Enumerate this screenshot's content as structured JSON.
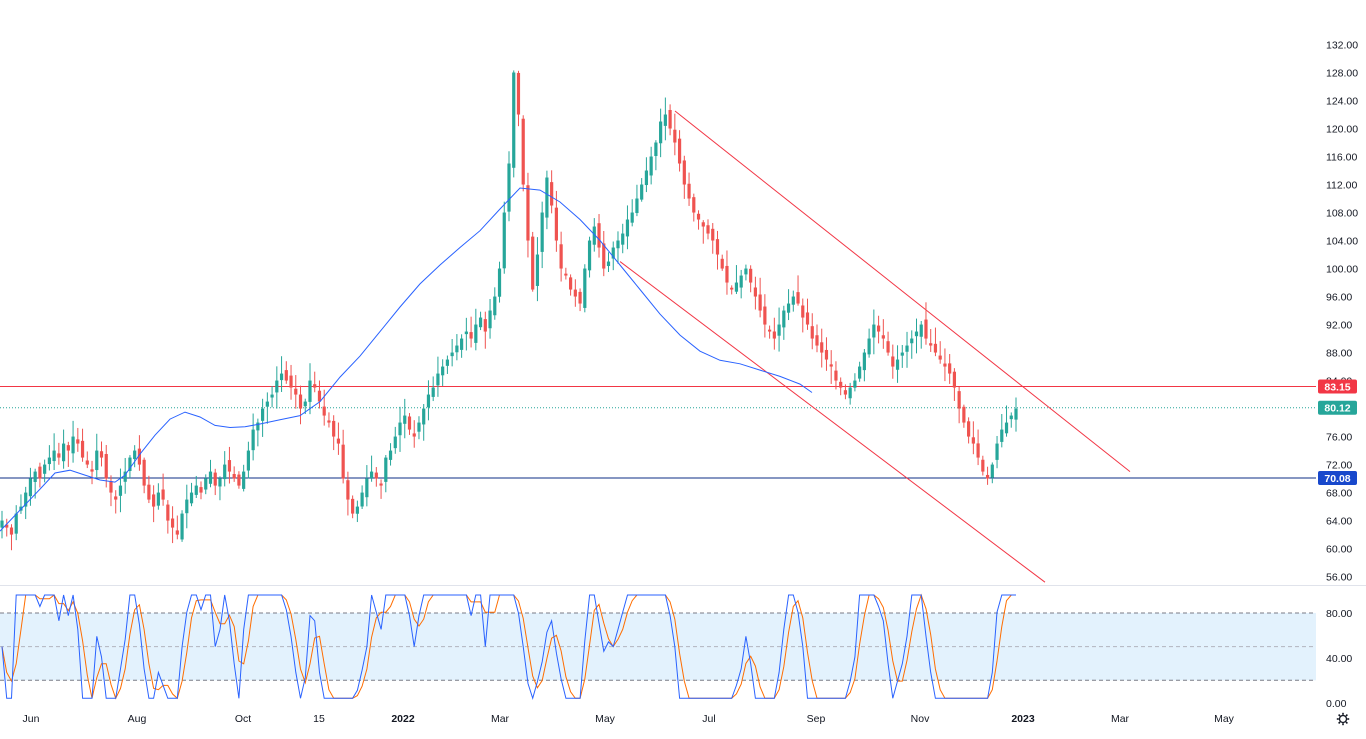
{
  "colors": {
    "up": "#26a69a",
    "down": "#ef5350",
    "ma": "#2962ff",
    "channel": "#f23645",
    "resistance": "#f23645",
    "support": "#0c2e86",
    "current": "#26a69a",
    "stoch_k": "#2962ff",
    "stoch_d": "#ff6d00",
    "stoch_band": "#e3f2fd",
    "grid_text": "#131722"
  },
  "icons": {
    "settings": "gear-icon"
  },
  "chart_data": [
    {
      "type": "candlestick",
      "title": "",
      "ylim": [
        54.8,
        133.5
      ],
      "y_ticks": [
        "132.00",
        "128.00",
        "124.00",
        "120.00",
        "116.00",
        "112.00",
        "108.00",
        "104.00",
        "100.00",
        "96.00",
        "92.00",
        "88.00",
        "84.00",
        "80.00",
        "76.00",
        "72.00",
        "68.00",
        "64.00",
        "60.00",
        "56.00"
      ],
      "x_ticks": [
        "Jun",
        "Aug",
        "Oct",
        "15",
        "2022",
        "Mar",
        "May",
        "Jul",
        "Sep",
        "Nov",
        "2023",
        "Mar",
        "May"
      ],
      "price_labels": [
        {
          "name": "resistance",
          "value": 83.15,
          "text": "83.15"
        },
        {
          "name": "current",
          "value": 80.12,
          "text": "80.12"
        },
        {
          "name": "support",
          "value": 70.08,
          "text": "70.08"
        }
      ],
      "close_series": [
        64,
        63,
        62,
        65,
        66,
        68,
        70,
        71,
        70,
        72,
        73,
        74,
        73,
        75,
        74,
        76,
        75,
        73,
        72,
        71,
        74,
        73,
        70,
        68,
        67,
        69,
        71,
        73,
        74,
        72,
        69,
        67,
        66,
        68,
        67,
        64,
        63,
        62,
        65,
        67,
        68,
        69,
        68,
        70,
        71,
        69,
        70,
        72,
        71,
        70,
        69,
        71,
        74,
        77,
        78,
        80,
        81,
        82,
        84,
        85,
        84,
        83,
        82,
        80,
        81,
        84,
        83,
        81,
        79,
        78,
        76,
        75,
        70,
        67,
        65,
        66,
        68,
        70,
        71,
        70,
        69,
        73,
        74,
        76,
        78,
        79,
        77,
        76,
        78,
        80,
        82,
        83,
        85,
        86,
        87,
        88,
        89,
        90,
        91,
        90,
        92,
        93,
        91,
        94,
        96,
        100,
        108,
        115,
        128,
        122,
        112,
        104,
        97,
        102,
        108,
        113,
        109,
        104,
        100,
        99,
        97,
        96,
        95,
        100,
        104,
        106,
        103,
        100,
        101,
        103,
        104,
        105,
        107,
        108,
        110,
        112,
        114,
        116,
        118,
        121,
        122,
        120,
        118,
        115,
        112,
        110,
        108,
        107,
        106,
        105,
        104,
        102,
        100,
        98,
        97,
        98,
        99,
        100,
        98,
        96,
        94,
        92,
        91,
        90,
        92,
        94,
        95,
        96,
        95,
        93,
        92,
        90,
        89,
        88,
        87,
        86,
        84,
        83,
        82,
        83,
        84,
        86,
        88,
        90,
        92,
        91,
        90,
        88,
        86,
        87,
        88,
        89,
        90,
        91,
        92,
        90,
        89,
        88,
        87,
        86,
        85,
        83,
        80,
        78,
        76,
        75,
        73,
        71,
        70,
        72,
        75,
        77,
        78,
        79,
        80
      ],
      "moving_average": [
        [
          0,
          62.5
        ],
        [
          20,
          65.5
        ],
        [
          40,
          68.5
        ],
        [
          55,
          70.8
        ],
        [
          70,
          71.2
        ],
        [
          85,
          70.5
        ],
        [
          100,
          69.8
        ],
        [
          115,
          69.5
        ],
        [
          125,
          70.5
        ],
        [
          140,
          73.5
        ],
        [
          155,
          76.2
        ],
        [
          170,
          78.5
        ],
        [
          185,
          79.5
        ],
        [
          200,
          78.8
        ],
        [
          215,
          77.6
        ],
        [
          230,
          77.3
        ],
        [
          245,
          77.4
        ],
        [
          260,
          77.8
        ],
        [
          280,
          78.4
        ],
        [
          300,
          79.0
        ],
        [
          320,
          81.0
        ],
        [
          340,
          84.5
        ],
        [
          360,
          87.5
        ],
        [
          380,
          91.0
        ],
        [
          400,
          94.5
        ],
        [
          420,
          97.8
        ],
        [
          440,
          100.5
        ],
        [
          460,
          103.0
        ],
        [
          480,
          105.4
        ],
        [
          500,
          108.5
        ],
        [
          520,
          111.5
        ],
        [
          540,
          111.2
        ],
        [
          560,
          109.5
        ],
        [
          580,
          107.0
        ],
        [
          600,
          104.0
        ],
        [
          620,
          100.5
        ],
        [
          640,
          97.0
        ],
        [
          660,
          93.5
        ],
        [
          680,
          90.5
        ],
        [
          700,
          88.2
        ],
        [
          720,
          86.9
        ],
        [
          740,
          86.4
        ],
        [
          760,
          85.5
        ],
        [
          780,
          84.6
        ],
        [
          800,
          83.5
        ],
        [
          812,
          82.3
        ]
      ],
      "trend_channel": {
        "upper": [
          [
            675,
            122.5
          ],
          [
            1130,
            71.0
          ]
        ],
        "lower": [
          [
            620,
            101.0
          ],
          [
            1045,
            55.2
          ]
        ]
      }
    },
    {
      "type": "line",
      "name": "stochastic",
      "ylim": [
        -2,
        104
      ],
      "y_ticks": [
        "80.00",
        "40.00",
        "0.00"
      ],
      "bands": {
        "upper": 80,
        "middle": 50,
        "lower": 20
      }
    }
  ]
}
